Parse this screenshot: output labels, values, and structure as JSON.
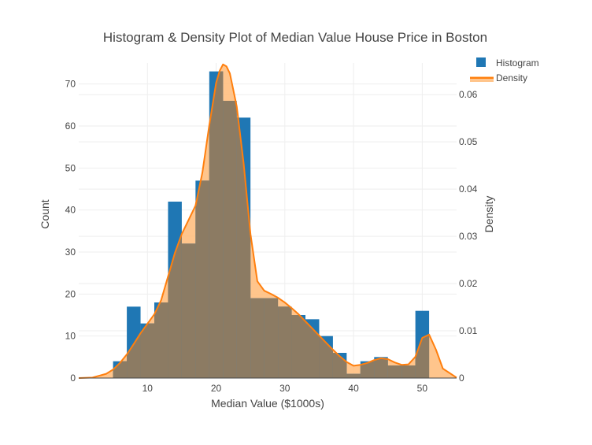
{
  "chart_data": {
    "type": "bar",
    "title": "Histogram & Density Plot of Median Value House Price in Boston",
    "xlabel": "Median Value ($1000s)",
    "ylabel": "Count",
    "y2label": "Density",
    "xlim": [
      0,
      55
    ],
    "ylim": [
      0,
      75
    ],
    "y2lim": [
      0,
      0.0667
    ],
    "x_ticks": [
      10,
      20,
      30,
      40,
      50
    ],
    "y_ticks": [
      0,
      10,
      20,
      30,
      40,
      50,
      60,
      70
    ],
    "y2_ticks": [
      0,
      0.01,
      0.02,
      0.03,
      0.04,
      0.05,
      0.06
    ],
    "y2_tick_labels": [
      "0",
      "0.01",
      "0.02",
      "0.03",
      "0.04",
      "0.05",
      "0.06"
    ],
    "grid": true,
    "legend_position": "top-right",
    "histogram": {
      "name": "Histogram",
      "color": "#1f77b4",
      "bin_width": 2,
      "bins": [
        {
          "x0": 5,
          "count": 4
        },
        {
          "x0": 7,
          "count": 17
        },
        {
          "x0": 9,
          "count": 13
        },
        {
          "x0": 11,
          "count": 18
        },
        {
          "x0": 13,
          "count": 42
        },
        {
          "x0": 15,
          "count": 32
        },
        {
          "x0": 17,
          "count": 47
        },
        {
          "x0": 19,
          "count": 73
        },
        {
          "x0": 21,
          "count": 66
        },
        {
          "x0": 23,
          "count": 62
        },
        {
          "x0": 25,
          "count": 19
        },
        {
          "x0": 27,
          "count": 19
        },
        {
          "x0": 29,
          "count": 17
        },
        {
          "x0": 31,
          "count": 15
        },
        {
          "x0": 33,
          "count": 14
        },
        {
          "x0": 35,
          "count": 10
        },
        {
          "x0": 37,
          "count": 6
        },
        {
          "x0": 39,
          "count": 1
        },
        {
          "x0": 41,
          "count": 4
        },
        {
          "x0": 43,
          "count": 5
        },
        {
          "x0": 45,
          "count": 3
        },
        {
          "x0": 47,
          "count": 3
        },
        {
          "x0": 49,
          "count": 16
        }
      ]
    },
    "density": {
      "name": "Density",
      "color": "#ff7f0e",
      "fill_color": "#ffbb78",
      "x": [
        0,
        2,
        4,
        5,
        6,
        7,
        8,
        9,
        10,
        11,
        12,
        13,
        14,
        15,
        16,
        17,
        18,
        19,
        20,
        20.5,
        21,
        21.5,
        22,
        23,
        24,
        25,
        26,
        27,
        28,
        29,
        30,
        31,
        32,
        33,
        34,
        35,
        36,
        37,
        38,
        39,
        40,
        41,
        42,
        43,
        44,
        45,
        46,
        47,
        48,
        49,
        50,
        51,
        52,
        53,
        55
      ],
      "y": [
        0.0,
        0.0001,
        0.0009,
        0.0018,
        0.0032,
        0.005,
        0.0072,
        0.0095,
        0.0115,
        0.0135,
        0.0165,
        0.0215,
        0.0265,
        0.0305,
        0.0335,
        0.0365,
        0.0435,
        0.0535,
        0.0625,
        0.065,
        0.0664,
        0.066,
        0.0645,
        0.0575,
        0.0455,
        0.0305,
        0.0205,
        0.0185,
        0.0178,
        0.017,
        0.016,
        0.0148,
        0.0135,
        0.012,
        0.0105,
        0.009,
        0.0075,
        0.006,
        0.0046,
        0.0034,
        0.0026,
        0.0028,
        0.0032,
        0.0038,
        0.0042,
        0.004,
        0.0033,
        0.0028,
        0.0029,
        0.0045,
        0.0085,
        0.0092,
        0.006,
        0.002,
        0.0001
      ]
    }
  }
}
